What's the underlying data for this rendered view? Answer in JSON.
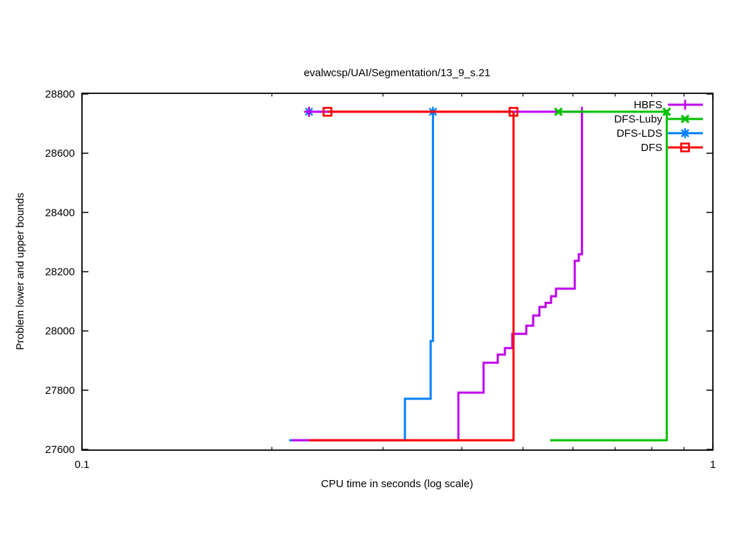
{
  "page": {
    "background": "#ffffff"
  },
  "chart_data": {
    "type": "line",
    "title": "evalwcsp/UAI/Segmentation/13_9_s.21",
    "xlabel": "CPU time in seconds (log scale)",
    "ylabel": "Problem lower and upper bounds",
    "x_axis": {
      "scale": "log",
      "min": 0.1,
      "max": 1,
      "major_ticks": [
        0.1,
        1
      ],
      "major_tick_labels": [
        "0.1",
        "1"
      ],
      "minor_ticks": [
        0.2,
        0.3,
        0.4,
        0.5,
        0.6,
        0.7,
        0.8,
        0.9
      ]
    },
    "y_axis": {
      "min": 27600,
      "max": 28800,
      "ticks": [
        27600,
        27800,
        28000,
        28200,
        28400,
        28600,
        28800
      ],
      "tick_labels": [
        "27600",
        "27800",
        "28000",
        "28200",
        "28400",
        "28600",
        "28800"
      ]
    },
    "grid": false,
    "legend_position": "top-right-inside",
    "optimum_bound": 28740,
    "initial_lower_bound": 27631,
    "series": [
      {
        "name": "HBFS",
        "color": "#c000f0",
        "marker": "plus",
        "lower_bound_steps": [
          [
            0.215,
            27631
          ],
          [
            0.395,
            27631
          ],
          [
            0.395,
            27792
          ],
          [
            0.433,
            27792
          ],
          [
            0.433,
            27893
          ],
          [
            0.456,
            27893
          ],
          [
            0.456,
            27920
          ],
          [
            0.468,
            27920
          ],
          [
            0.468,
            27942
          ],
          [
            0.481,
            27942
          ],
          [
            0.481,
            27990
          ],
          [
            0.506,
            27990
          ],
          [
            0.506,
            28018
          ],
          [
            0.519,
            28018
          ],
          [
            0.519,
            28052
          ],
          [
            0.531,
            28052
          ],
          [
            0.531,
            28081
          ],
          [
            0.543,
            28081
          ],
          [
            0.543,
            28095
          ],
          [
            0.554,
            28095
          ],
          [
            0.554,
            28117
          ],
          [
            0.564,
            28117
          ],
          [
            0.564,
            28143
          ],
          [
            0.604,
            28143
          ],
          [
            0.604,
            28237
          ],
          [
            0.613,
            28237
          ],
          [
            0.613,
            28259
          ],
          [
            0.62,
            28259
          ],
          [
            0.62,
            28740
          ]
        ],
        "upper_bound_steps": [
          [
            0.229,
            28740
          ],
          [
            0.62,
            28740
          ]
        ],
        "marker_points": [
          [
            0.229,
            28740
          ],
          [
            0.62,
            28740
          ]
        ]
      },
      {
        "name": "DFS-Luby",
        "color": "#00c000",
        "marker": "x",
        "lower_bound_steps": [
          [
            0.552,
            27631
          ],
          [
            0.845,
            27631
          ],
          [
            0.845,
            28740
          ]
        ],
        "upper_bound_steps": [
          [
            0.569,
            28740
          ],
          [
            0.845,
            28740
          ]
        ],
        "marker_points": [
          [
            0.569,
            28740
          ],
          [
            0.845,
            28740
          ]
        ]
      },
      {
        "name": "DFS-LDS",
        "color": "#0080ff",
        "marker": "asterisk",
        "lower_bound_steps": [
          [
            0.213,
            27631
          ],
          [
            0.325,
            27631
          ],
          [
            0.325,
            27771
          ],
          [
            0.357,
            27771
          ],
          [
            0.357,
            27966
          ],
          [
            0.36,
            27966
          ],
          [
            0.36,
            28740
          ]
        ],
        "upper_bound_steps": [
          [
            0.229,
            28740
          ],
          [
            0.36,
            28740
          ]
        ],
        "marker_points": [
          [
            0.229,
            28740
          ],
          [
            0.36,
            28740
          ]
        ]
      },
      {
        "name": "DFS",
        "color": "#ff0000",
        "marker": "open-square",
        "lower_bound_steps": [
          [
            0.229,
            27631
          ],
          [
            0.483,
            27631
          ],
          [
            0.483,
            28740
          ]
        ],
        "upper_bound_steps": [
          [
            0.245,
            28740
          ],
          [
            0.483,
            28740
          ]
        ],
        "marker_points": [
          [
            0.245,
            28740
          ],
          [
            0.483,
            28740
          ]
        ]
      }
    ]
  }
}
